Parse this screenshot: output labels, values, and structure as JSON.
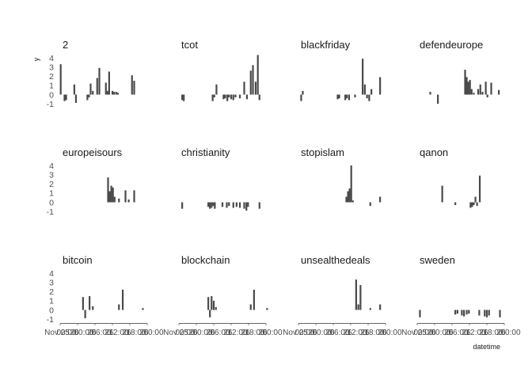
{
  "chart_data": {
    "type": "bar",
    "layout": "faceted grid of 12 small-multiple bar charts (3 rows x 4 columns)",
    "xlabel": "datetime",
    "ylabel": "y",
    "ylim": [
      -1.5,
      4.5
    ],
    "yticks": [
      4,
      3,
      2,
      1,
      0,
      -1
    ],
    "x_domain": [
      0,
      8
    ],
    "x_axis_text": "Nov 25 00:00 26 00:00 26 06:00 26 12:00 26 18:00 00:00",
    "x_tick_labels": [
      "Nov 25",
      "26",
      "26",
      "26",
      "26",
      "26"
    ],
    "x_tick_labels_2": [
      "00:00",
      "00:00",
      "06:00",
      "12:00",
      "18:00",
      "00:00"
    ],
    "panels": [
      {
        "title": "2",
        "x": [
          0.05,
          0.4,
          0.55,
          1.3,
          1.45,
          2.5,
          2.65,
          2.8,
          3.0,
          3.4,
          3.6,
          4.2,
          4.35,
          4.5,
          4.8,
          4.95,
          5.15,
          5.3,
          6.6,
          6.8
        ],
        "values": [
          3.3,
          -0.7,
          -0.6,
          1.1,
          -0.9,
          -0.6,
          -0.3,
          1.2,
          0.4,
          1.8,
          2.9,
          1.3,
          0.4,
          2.5,
          0.4,
          0.3,
          0.3,
          0.2,
          2.1,
          1.5
        ]
      },
      {
        "title": "tcot",
        "x": [
          0.3,
          0.45,
          3.1,
          3.25,
          3.45,
          4.1,
          4.25,
          4.45,
          4.6,
          4.8,
          5.0,
          5.2,
          5.6,
          6.0,
          6.25,
          6.6,
          6.8,
          7.05,
          7.25,
          7.4
        ],
        "values": [
          -0.6,
          -0.7,
          -0.7,
          -0.3,
          1.1,
          -0.5,
          -0.4,
          -0.7,
          -0.3,
          -0.5,
          -0.6,
          -0.3,
          -0.4,
          1.4,
          -0.5,
          2.6,
          3.2,
          1.4,
          4.3,
          -0.6
        ]
      },
      {
        "title": "blackfriday",
        "x": [
          0.25,
          0.4,
          3.6,
          3.75,
          4.3,
          4.45,
          4.65,
          5.2,
          5.9,
          6.1,
          6.3,
          6.5,
          6.7,
          7.5
        ],
        "values": [
          -0.7,
          0.4,
          -0.5,
          -0.4,
          -0.6,
          -0.4,
          -0.6,
          -0.3,
          3.9,
          1.1,
          -0.4,
          -0.7,
          0.6,
          1.9
        ]
      },
      {
        "title": "defendeurope",
        "x": [
          1.2,
          1.9,
          4.4,
          4.55,
          4.7,
          4.85,
          5.0,
          5.2,
          5.6,
          5.8,
          6.0,
          6.3,
          6.45,
          6.8,
          7.5
        ],
        "values": [
          0.3,
          -1.0,
          2.7,
          1.9,
          1.4,
          1.6,
          0.6,
          0.2,
          0.6,
          1.1,
          0.3,
          1.4,
          -0.3,
          1.3,
          0.5
        ]
      },
      {
        "title": "europeisours",
        "x": [
          4.4,
          4.55,
          4.7,
          4.85,
          5.0,
          5.4,
          6.0,
          6.3,
          6.8
        ],
        "values": [
          2.7,
          1.2,
          1.8,
          1.6,
          0.6,
          0.4,
          1.3,
          0.3,
          1.3
        ]
      },
      {
        "title": "christianity",
        "x": [
          0.3,
          2.7,
          2.85,
          3.0,
          3.15,
          3.3,
          4.0,
          4.4,
          4.6,
          5.0,
          5.3,
          5.6,
          6.0,
          6.2,
          6.35,
          7.4
        ],
        "values": [
          -0.7,
          -0.5,
          -0.7,
          -0.6,
          -0.4,
          -0.7,
          -0.5,
          -0.6,
          -0.4,
          -0.6,
          -0.5,
          -0.6,
          -0.7,
          -0.9,
          -0.5,
          -0.7
        ]
      },
      {
        "title": "stopislam",
        "x": [
          4.4,
          4.55,
          4.7,
          4.85,
          5.0,
          6.6,
          7.5
        ],
        "values": [
          0.6,
          1.2,
          1.5,
          4.0,
          0.2,
          -0.4,
          0.6
        ]
      },
      {
        "title": "qanon",
        "x": [
          2.3,
          3.5,
          4.9,
          5.05,
          5.2,
          5.35,
          5.5,
          5.75
        ],
        "values": [
          1.8,
          -0.3,
          -0.6,
          -0.5,
          -0.3,
          0.6,
          -0.4,
          2.9
        ]
      },
      {
        "title": "bitcoin",
        "x": [
          2.1,
          2.3,
          2.7,
          3.0,
          5.4,
          5.75,
          7.6
        ],
        "values": [
          1.4,
          -0.9,
          1.5,
          0.4,
          0.6,
          2.2,
          0.2
        ]
      },
      {
        "title": "blockchain",
        "x": [
          2.7,
          2.85,
          3.0,
          3.2,
          3.4,
          6.6,
          6.9,
          8.1
        ],
        "values": [
          1.4,
          -0.8,
          1.5,
          1.0,
          0.3,
          0.6,
          2.2,
          0.2
        ]
      },
      {
        "title": "unsealthedeals",
        "x": [
          5.3,
          5.5,
          5.7,
          6.6,
          7.5
        ],
        "values": [
          3.3,
          0.6,
          2.7,
          0.2,
          0.6
        ]
      },
      {
        "title": "sweden",
        "x": [
          0.25,
          3.5,
          3.7,
          4.1,
          4.3,
          4.55,
          4.75,
          5.7,
          6.2,
          6.4,
          6.6,
          7.6
        ],
        "values": [
          -0.8,
          -0.5,
          -0.4,
          -0.6,
          -0.7,
          -0.5,
          -0.4,
          -0.6,
          -0.7,
          -0.8,
          -0.6,
          -0.8
        ]
      }
    ]
  }
}
